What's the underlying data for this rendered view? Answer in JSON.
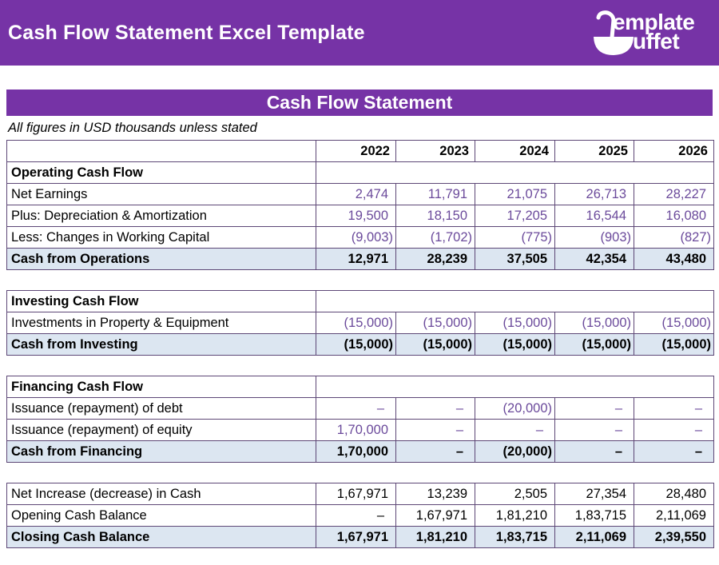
{
  "banner": {
    "title": "Cash Flow Statement Excel Template",
    "logo": {
      "icon": "ladle-icon",
      "line1": "emplate",
      "line2": "uffet"
    }
  },
  "sheet": {
    "title": "Cash Flow Statement",
    "note": "All figures in USD thousands unless stated"
  },
  "colors": {
    "banner_purple": "#7633a6",
    "section_header_blue": "#8db4e2",
    "total_row_blue": "#dce6f1",
    "grid_border_purple": "#5d4776",
    "input_value_purple": "#6b4a9b"
  },
  "table": {
    "years": [
      "2022",
      "2023",
      "2024",
      "2025",
      "2026"
    ],
    "sections": [
      {
        "header": "Operating Cash Flow",
        "rows": [
          {
            "label": "Net Earnings",
            "type": "input",
            "values": [
              "2,474",
              "11,791",
              "21,075",
              "26,713",
              "28,227"
            ]
          },
          {
            "label": "Plus: Depreciation & Amortization",
            "type": "input",
            "values": [
              "19,500",
              "18,150",
              "17,205",
              "16,544",
              "16,080"
            ]
          },
          {
            "label": "Less: Changes in Working Capital",
            "type": "input",
            "values": [
              "(9,003)",
              "(1,702)",
              "(775)",
              "(903)",
              "(827)"
            ]
          },
          {
            "label": "Cash from Operations",
            "type": "total",
            "values": [
              "12,971",
              "28,239",
              "37,505",
              "42,354",
              "43,480"
            ]
          }
        ]
      },
      {
        "header": "Investing Cash Flow",
        "rows": [
          {
            "label": "Investments in Property & Equipment",
            "type": "input",
            "values": [
              "(15,000)",
              "(15,000)",
              "(15,000)",
              "(15,000)",
              "(15,000)"
            ]
          },
          {
            "label": "Cash from Investing",
            "type": "total",
            "values": [
              "(15,000)",
              "(15,000)",
              "(15,000)",
              "(15,000)",
              "(15,000)"
            ]
          }
        ]
      },
      {
        "header": "Financing Cash Flow",
        "rows": [
          {
            "label": "Issuance (repayment) of debt",
            "type": "input",
            "values": [
              "–",
              "–",
              "(20,000)",
              "–",
              "–"
            ]
          },
          {
            "label": "Issuance (repayment) of equity",
            "type": "input",
            "values": [
              "1,70,000",
              "–",
              "–",
              "–",
              "–"
            ]
          },
          {
            "label": "Cash from Financing",
            "type": "total",
            "values": [
              "1,70,000",
              "–",
              "(20,000)",
              "–",
              "–"
            ]
          }
        ]
      },
      {
        "header": null,
        "rows": [
          {
            "label": "Net Increase (decrease) in Cash",
            "type": "calc",
            "values": [
              "1,67,971",
              "13,239",
              "2,505",
              "27,354",
              "28,480"
            ]
          },
          {
            "label": "Opening Cash Balance",
            "type": "calc",
            "values": [
              "–",
              "1,67,971",
              "1,81,210",
              "1,83,715",
              "2,11,069"
            ]
          },
          {
            "label": "Closing Cash Balance",
            "type": "total",
            "values": [
              "1,67,971",
              "1,81,210",
              "1,83,715",
              "2,11,069",
              "2,39,550"
            ]
          }
        ]
      }
    ]
  }
}
